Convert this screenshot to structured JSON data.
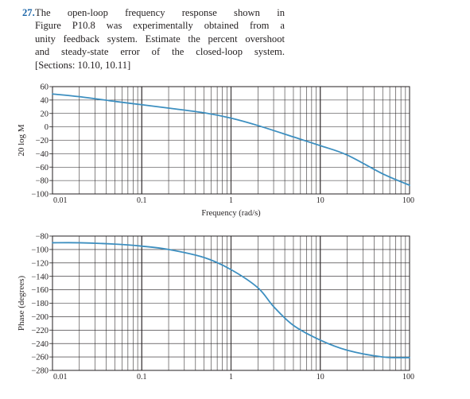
{
  "problem": {
    "number": "27.",
    "lines": [
      "The open-loop frequency response shown in",
      "Figure P10.8 was experimentally obtained from a",
      "unity feedback system. Estimate the percent overshoot",
      "and steady-state error of the closed-loop system.",
      "[Sections: 10.10, 10.11]"
    ]
  },
  "colors": {
    "curve": "#3d8fc0",
    "grid": "#231f20",
    "text": "#231f20",
    "number": "#1a64a8"
  },
  "chart_data": [
    {
      "type": "line",
      "x_scale": "log",
      "xlim": [
        0.01,
        100
      ],
      "x_ticks": [
        "0.01",
        "0.1",
        "1",
        "10",
        "100"
      ],
      "xlabel": "Frequency (rad/s)",
      "ylabel": "20 log M",
      "ylim": [
        -100,
        60
      ],
      "y_ticks": [
        "60",
        "40",
        "20",
        "0",
        "−20",
        "−40",
        "−60",
        "−80",
        "−100"
      ],
      "grid": true,
      "series": [
        {
          "x": [
            0.01,
            0.02,
            0.05,
            0.1,
            0.2,
            0.5,
            1,
            2,
            5,
            10,
            20,
            50,
            100
          ],
          "y": [
            49,
            45,
            38,
            33,
            28,
            21,
            13,
            2,
            -15,
            -28,
            -42,
            -70,
            -87
          ]
        }
      ]
    },
    {
      "type": "line",
      "x_scale": "log",
      "xlim": [
        0.01,
        100
      ],
      "x_ticks": [
        "0.01",
        "0.1",
        "1",
        "10",
        "100"
      ],
      "xlabel": "",
      "ylabel": "Phase (degrees)",
      "ylim": [
        -280,
        -80
      ],
      "y_ticks": [
        "−80",
        "−100",
        "−120",
        "−140",
        "−160",
        "−180",
        "−200",
        "−220",
        "−240",
        "−260",
        "−280"
      ],
      "grid": true,
      "series": [
        {
          "x": [
            0.01,
            0.02,
            0.05,
            0.1,
            0.2,
            0.5,
            1,
            2,
            3,
            5,
            10,
            20,
            50,
            100
          ],
          "y": [
            -90,
            -90,
            -92,
            -95,
            -100,
            -112,
            -130,
            -157,
            -185,
            -213,
            -235,
            -250,
            -260,
            -261
          ]
        }
      ]
    }
  ]
}
